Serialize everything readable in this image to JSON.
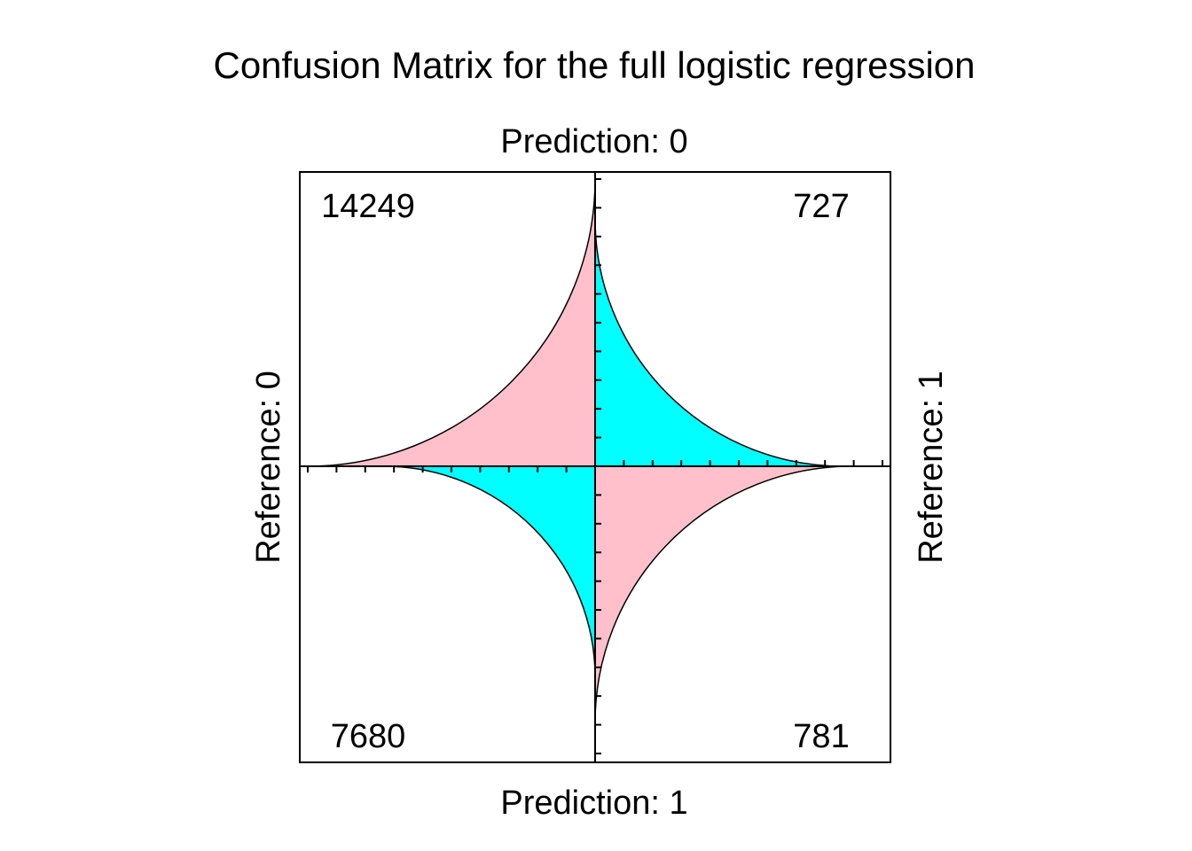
{
  "chart_data": {
    "type": "fourfold",
    "title": "Confusion Matrix for the full logistic regression",
    "labels": {
      "top": "Prediction: 0",
      "bottom": "Prediction: 1",
      "left": "Reference: 0",
      "right": "Reference: 1"
    },
    "cells": [
      {
        "quadrant": "top-left",
        "prediction": "0",
        "reference": "0",
        "value": 14249,
        "color": "#FFC0CB"
      },
      {
        "quadrant": "top-right",
        "prediction": "0",
        "reference": "1",
        "value": 727,
        "color": "#00FFFF"
      },
      {
        "quadrant": "bottom-left",
        "prediction": "1",
        "reference": "0",
        "value": 7680,
        "color": "#00FFFF"
      },
      {
        "quadrant": "bottom-right",
        "prediction": "1",
        "reference": "1",
        "value": 781,
        "color": "#FFC0CB"
      }
    ],
    "grid": false,
    "legend": "none"
  }
}
